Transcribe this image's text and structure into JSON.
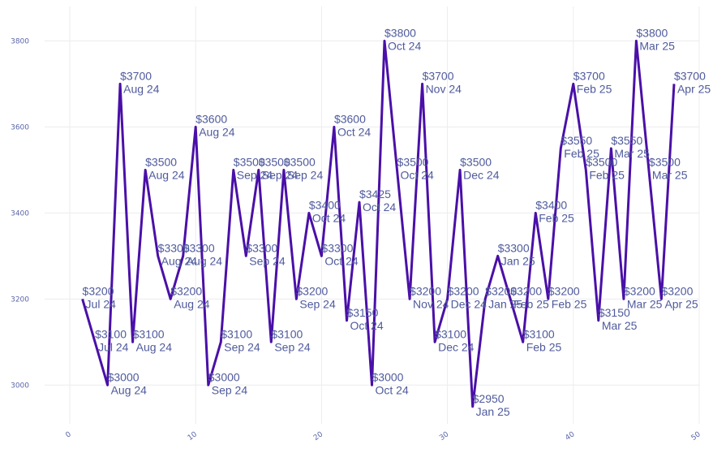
{
  "chart_data": {
    "type": "line",
    "title": "",
    "xlabel": "",
    "ylabel": "",
    "xlim": [
      -2,
      50
    ],
    "ylim": [
      2910,
      3880
    ],
    "x_ticks": [
      0,
      10,
      20,
      30,
      40,
      50
    ],
    "y_ticks": [
      3000,
      3200,
      3400,
      3600,
      3800
    ],
    "grid": true,
    "line_color": "#4a10a8",
    "points": [
      {
        "x": 1,
        "y": 3200,
        "price": "$3200",
        "month": "Jul 24"
      },
      {
        "x": 2,
        "y": 3100,
        "price": "$3100",
        "month": "Jul 24"
      },
      {
        "x": 3,
        "y": 3000,
        "price": "$3000",
        "month": "Aug 24"
      },
      {
        "x": 4,
        "y": 3700,
        "price": "$3700",
        "month": "Aug 24"
      },
      {
        "x": 5,
        "y": 3100,
        "price": "$3100",
        "month": "Aug 24"
      },
      {
        "x": 6,
        "y": 3500,
        "price": "$3500",
        "month": "Aug 24"
      },
      {
        "x": 7,
        "y": 3300,
        "price": "$3300",
        "month": "Aug 24"
      },
      {
        "x": 8,
        "y": 3200,
        "price": "$3200",
        "month": "Aug 24"
      },
      {
        "x": 9,
        "y": 3300,
        "price": "$3300",
        "month": "Aug 24"
      },
      {
        "x": 10,
        "y": 3600,
        "price": "$3600",
        "month": "Aug 24"
      },
      {
        "x": 11,
        "y": 3000,
        "price": "$3000",
        "month": "Sep 24"
      },
      {
        "x": 12,
        "y": 3100,
        "price": "$3100",
        "month": "Sep 24"
      },
      {
        "x": 13,
        "y": 3500,
        "price": "$3500",
        "month": "Sep 24"
      },
      {
        "x": 14,
        "y": 3300,
        "price": "$3300",
        "month": "Sep 24"
      },
      {
        "x": 15,
        "y": 3500,
        "price": "$3500",
        "month": "Sep 24"
      },
      {
        "x": 16,
        "y": 3100,
        "price": "$3100",
        "month": "Sep 24"
      },
      {
        "x": 17,
        "y": 3500,
        "price": "$3500",
        "month": "Sep 24"
      },
      {
        "x": 18,
        "y": 3200,
        "price": "$3200",
        "month": "Sep 24"
      },
      {
        "x": 19,
        "y": 3400,
        "price": "$3400",
        "month": "Oct 24"
      },
      {
        "x": 20,
        "y": 3300,
        "price": "$3300",
        "month": "Oct 24"
      },
      {
        "x": 21,
        "y": 3600,
        "price": "$3600",
        "month": "Oct 24"
      },
      {
        "x": 22,
        "y": 3150,
        "price": "$3150",
        "month": "Oct 24"
      },
      {
        "x": 23,
        "y": 3425,
        "price": "$3425",
        "month": "Oct 24"
      },
      {
        "x": 24,
        "y": 3000,
        "price": "$3000",
        "month": "Oct 24"
      },
      {
        "x": 25,
        "y": 3800,
        "price": "$3800",
        "month": "Oct 24"
      },
      {
        "x": 26,
        "y": 3500,
        "price": "$3500",
        "month": "Oct 24"
      },
      {
        "x": 27,
        "y": 3200,
        "price": "$3200",
        "month": "Nov 24"
      },
      {
        "x": 28,
        "y": 3700,
        "price": "$3700",
        "month": "Nov 24"
      },
      {
        "x": 29,
        "y": 3100,
        "price": "$3100",
        "month": "Dec 24"
      },
      {
        "x": 30,
        "y": 3200,
        "price": "$3200",
        "month": "Dec 24"
      },
      {
        "x": 31,
        "y": 3500,
        "price": "$3500",
        "month": "Dec 24"
      },
      {
        "x": 32,
        "y": 2950,
        "price": "$2950",
        "month": "Jan 25"
      },
      {
        "x": 33,
        "y": 3200,
        "price": "$3200",
        "month": "Jan 25"
      },
      {
        "x": 34,
        "y": 3300,
        "price": "$3300",
        "month": "Jan 25"
      },
      {
        "x": 35,
        "y": 3200,
        "price": "$3200",
        "month": "Feb 25"
      },
      {
        "x": 36,
        "y": 3100,
        "price": "$3100",
        "month": "Feb 25"
      },
      {
        "x": 37,
        "y": 3400,
        "price": "$3400",
        "month": "Feb 25"
      },
      {
        "x": 38,
        "y": 3200,
        "price": "$3200",
        "month": "Feb 25"
      },
      {
        "x": 39,
        "y": 3550,
        "price": "$3550",
        "month": "Feb 25"
      },
      {
        "x": 40,
        "y": 3700,
        "price": "$3700",
        "month": "Feb 25"
      },
      {
        "x": 41,
        "y": 3500,
        "price": "$3500",
        "month": "Feb 25"
      },
      {
        "x": 42,
        "y": 3150,
        "price": "$3150",
        "month": "Mar 25"
      },
      {
        "x": 43,
        "y": 3550,
        "price": "$3550",
        "month": "Mar 25"
      },
      {
        "x": 44,
        "y": 3200,
        "price": "$3200",
        "month": "Mar 25"
      },
      {
        "x": 45,
        "y": 3800,
        "price": "$3800",
        "month": "Mar 25"
      },
      {
        "x": 46,
        "y": 3500,
        "price": "$3500",
        "month": "Mar 25"
      },
      {
        "x": 47,
        "y": 3200,
        "price": "$3200",
        "month": "Apr 25"
      },
      {
        "x": 48,
        "y": 3700,
        "price": "$3700",
        "month": "Apr 25"
      }
    ]
  }
}
